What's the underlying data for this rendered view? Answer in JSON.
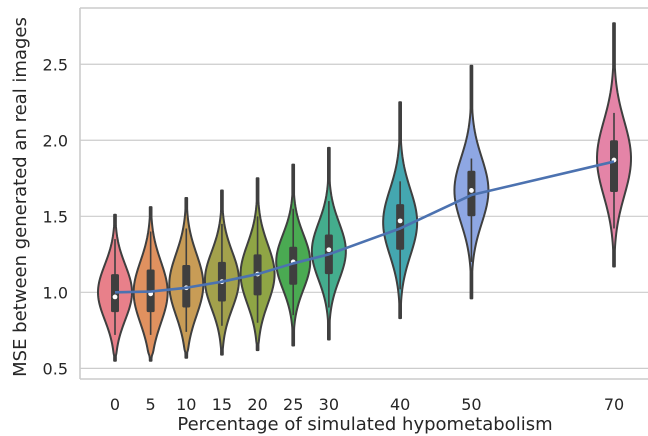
{
  "chart_data": {
    "type": "violin",
    "xlabel": "Percentage of simulated hypometabolism",
    "ylabel": "MSE between generated an real images",
    "ylim": [
      0.43,
      2.87
    ],
    "yticks": [
      0.5,
      1.0,
      1.5,
      2.0,
      2.5
    ],
    "ytick_labels": [
      "0.5",
      "1.0",
      "1.5",
      "2.0",
      "2.5"
    ],
    "grid": "horizontal",
    "categories": [
      "0",
      "5",
      "10",
      "15",
      "20",
      "25",
      "30",
      "40",
      "50",
      "70"
    ],
    "x": [
      0,
      5,
      10,
      15,
      20,
      25,
      30,
      40,
      50,
      70
    ],
    "colors": [
      "#e8808a",
      "#e0915f",
      "#c89c56",
      "#a3a14c",
      "#8fa545",
      "#4aaa52",
      "#44ad8d",
      "#44a7b0",
      "#8ea7e3",
      "#e484a7"
    ],
    "violins": [
      {
        "min": 0.55,
        "max": 1.51,
        "q1": 0.87,
        "median": 0.97,
        "q3": 1.12,
        "whisker_lo": 0.72,
        "whisker_hi": 1.35,
        "mode": 1.0
      },
      {
        "min": 0.55,
        "max": 1.56,
        "q1": 0.87,
        "median": 0.99,
        "q3": 1.15,
        "whisker_lo": 0.72,
        "whisker_hi": 1.4,
        "mode": 1.0
      },
      {
        "min": 0.57,
        "max": 1.62,
        "q1": 0.9,
        "median": 1.03,
        "q3": 1.18,
        "whisker_lo": 0.74,
        "whisker_hi": 1.42,
        "mode": 1.05
      },
      {
        "min": 0.59,
        "max": 1.67,
        "q1": 0.94,
        "median": 1.07,
        "q3": 1.2,
        "whisker_lo": 0.78,
        "whisker_hi": 1.45,
        "mode": 1.08
      },
      {
        "min": 0.62,
        "max": 1.75,
        "q1": 0.98,
        "median": 1.12,
        "q3": 1.25,
        "whisker_lo": 0.8,
        "whisker_hi": 1.5,
        "mode": 1.12
      },
      {
        "min": 0.65,
        "max": 1.84,
        "q1": 1.05,
        "median": 1.2,
        "q3": 1.3,
        "whisker_lo": 0.85,
        "whisker_hi": 1.55,
        "mode": 1.2
      },
      {
        "min": 0.69,
        "max": 1.95,
        "q1": 1.12,
        "median": 1.28,
        "q3": 1.38,
        "whisker_lo": 0.9,
        "whisker_hi": 1.6,
        "mode": 1.27
      },
      {
        "min": 0.83,
        "max": 2.25,
        "q1": 1.28,
        "median": 1.47,
        "q3": 1.58,
        "whisker_lo": 1.02,
        "whisker_hi": 1.73,
        "mode": 1.46
      },
      {
        "min": 0.96,
        "max": 2.49,
        "q1": 1.5,
        "median": 1.67,
        "q3": 1.8,
        "whisker_lo": 1.2,
        "whisker_hi": 1.88,
        "mode": 1.67
      },
      {
        "min": 1.17,
        "max": 2.77,
        "q1": 1.66,
        "median": 1.87,
        "q3": 2.0,
        "whisker_lo": 1.42,
        "whisker_hi": 2.18,
        "mode": 1.88
      }
    ],
    "mean_line": {
      "color": "#4c72b0",
      "values": [
        1.0,
        1.005,
        1.03,
        1.07,
        1.12,
        1.19,
        1.25,
        1.42,
        1.64,
        1.86
      ]
    }
  }
}
